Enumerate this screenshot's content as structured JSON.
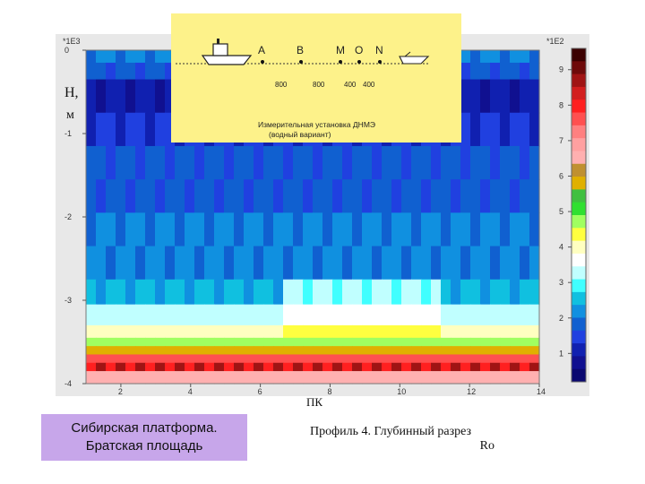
{
  "chart_data": {
    "type": "heatmap",
    "title": "",
    "xlabel": "ПК",
    "ylabel_line1": "H,",
    "ylabel_line2": "м",
    "x_range": [
      1,
      14
    ],
    "y_range": [
      -4,
      0
    ],
    "x_ticks": [
      "2",
      "4",
      "6",
      "8",
      "10",
      "12",
      "14"
    ],
    "y_ticks": [
      "0",
      "-1",
      "-2",
      "-3",
      "-4"
    ],
    "y_multiplier": "*1E3",
    "x_multiplier": "*1E2",
    "colorbar": {
      "ticks": [
        "1",
        "2",
        "3",
        "4",
        "5",
        "6",
        "7",
        "8",
        "9"
      ],
      "colors": [
        "#3b0000",
        "#6e0a0a",
        "#a01414",
        "#d21e1e",
        "#ff2020",
        "#ff5050",
        "#ff8080",
        "#ffa0a0",
        "#ffb0b0",
        "#c09030",
        "#e0b000",
        "#40c040",
        "#30e030",
        "#a0ff60",
        "#ffff40",
        "#ffffc0",
        "#ffffff",
        "#c0ffff",
        "#40ffff",
        "#10c0e0",
        "#1090e0",
        "#1060d0",
        "#2040e0",
        "#1020b0",
        "#101090",
        "#0a0870"
      ]
    },
    "bands": [
      {
        "depth": [
          0.0,
          -0.15
        ],
        "level": 0.8
      },
      {
        "depth": [
          -0.15,
          -0.35
        ],
        "level": 0.86
      },
      {
        "depth": [
          -0.35,
          -0.75
        ],
        "level": 0.93
      },
      {
        "depth": [
          -0.75,
          -1.15
        ],
        "level": 0.89
      },
      {
        "depth": [
          -1.15,
          -1.55
        ],
        "level": 0.86
      },
      {
        "depth": [
          -1.55,
          -1.95
        ],
        "level": 0.84
      },
      {
        "depth": [
          -1.95,
          -2.35
        ],
        "level": 0.82
      },
      {
        "depth": [
          -2.35,
          -2.75
        ],
        "level": 0.8
      },
      {
        "depth": [
          -2.75,
          -3.05
        ],
        "level": 0.76
      },
      {
        "depth": [
          -3.05,
          -3.3
        ],
        "level": 0.68
      },
      {
        "depth": [
          -3.3,
          -3.45
        ],
        "level": 0.6
      },
      {
        "depth": [
          -3.45,
          -3.55
        ],
        "level": 0.5
      },
      {
        "depth": [
          -3.55,
          -3.65
        ],
        "level": 0.4
      },
      {
        "depth": [
          -3.65,
          -3.75
        ],
        "level": 0.2
      },
      {
        "depth": [
          -3.75,
          -3.85
        ],
        "level": 0.12
      },
      {
        "depth": [
          -3.85,
          -4.0
        ],
        "level": 0.3
      }
    ]
  },
  "inset": {
    "electrodes": [
      "A",
      "B",
      "M",
      "O",
      "N"
    ],
    "spacings": [
      "800",
      "800",
      "400",
      "400"
    ],
    "caption_line1": "Измерительная установка ДНМЭ",
    "caption_line2": "(водный вариант)"
  },
  "caption_left": {
    "line1": "Сибирская платформа.",
    "line2": "Братская площадь"
  },
  "caption_right": {
    "line1": "Профиль 4. Глубинный разрез",
    "line2": "Ro"
  }
}
